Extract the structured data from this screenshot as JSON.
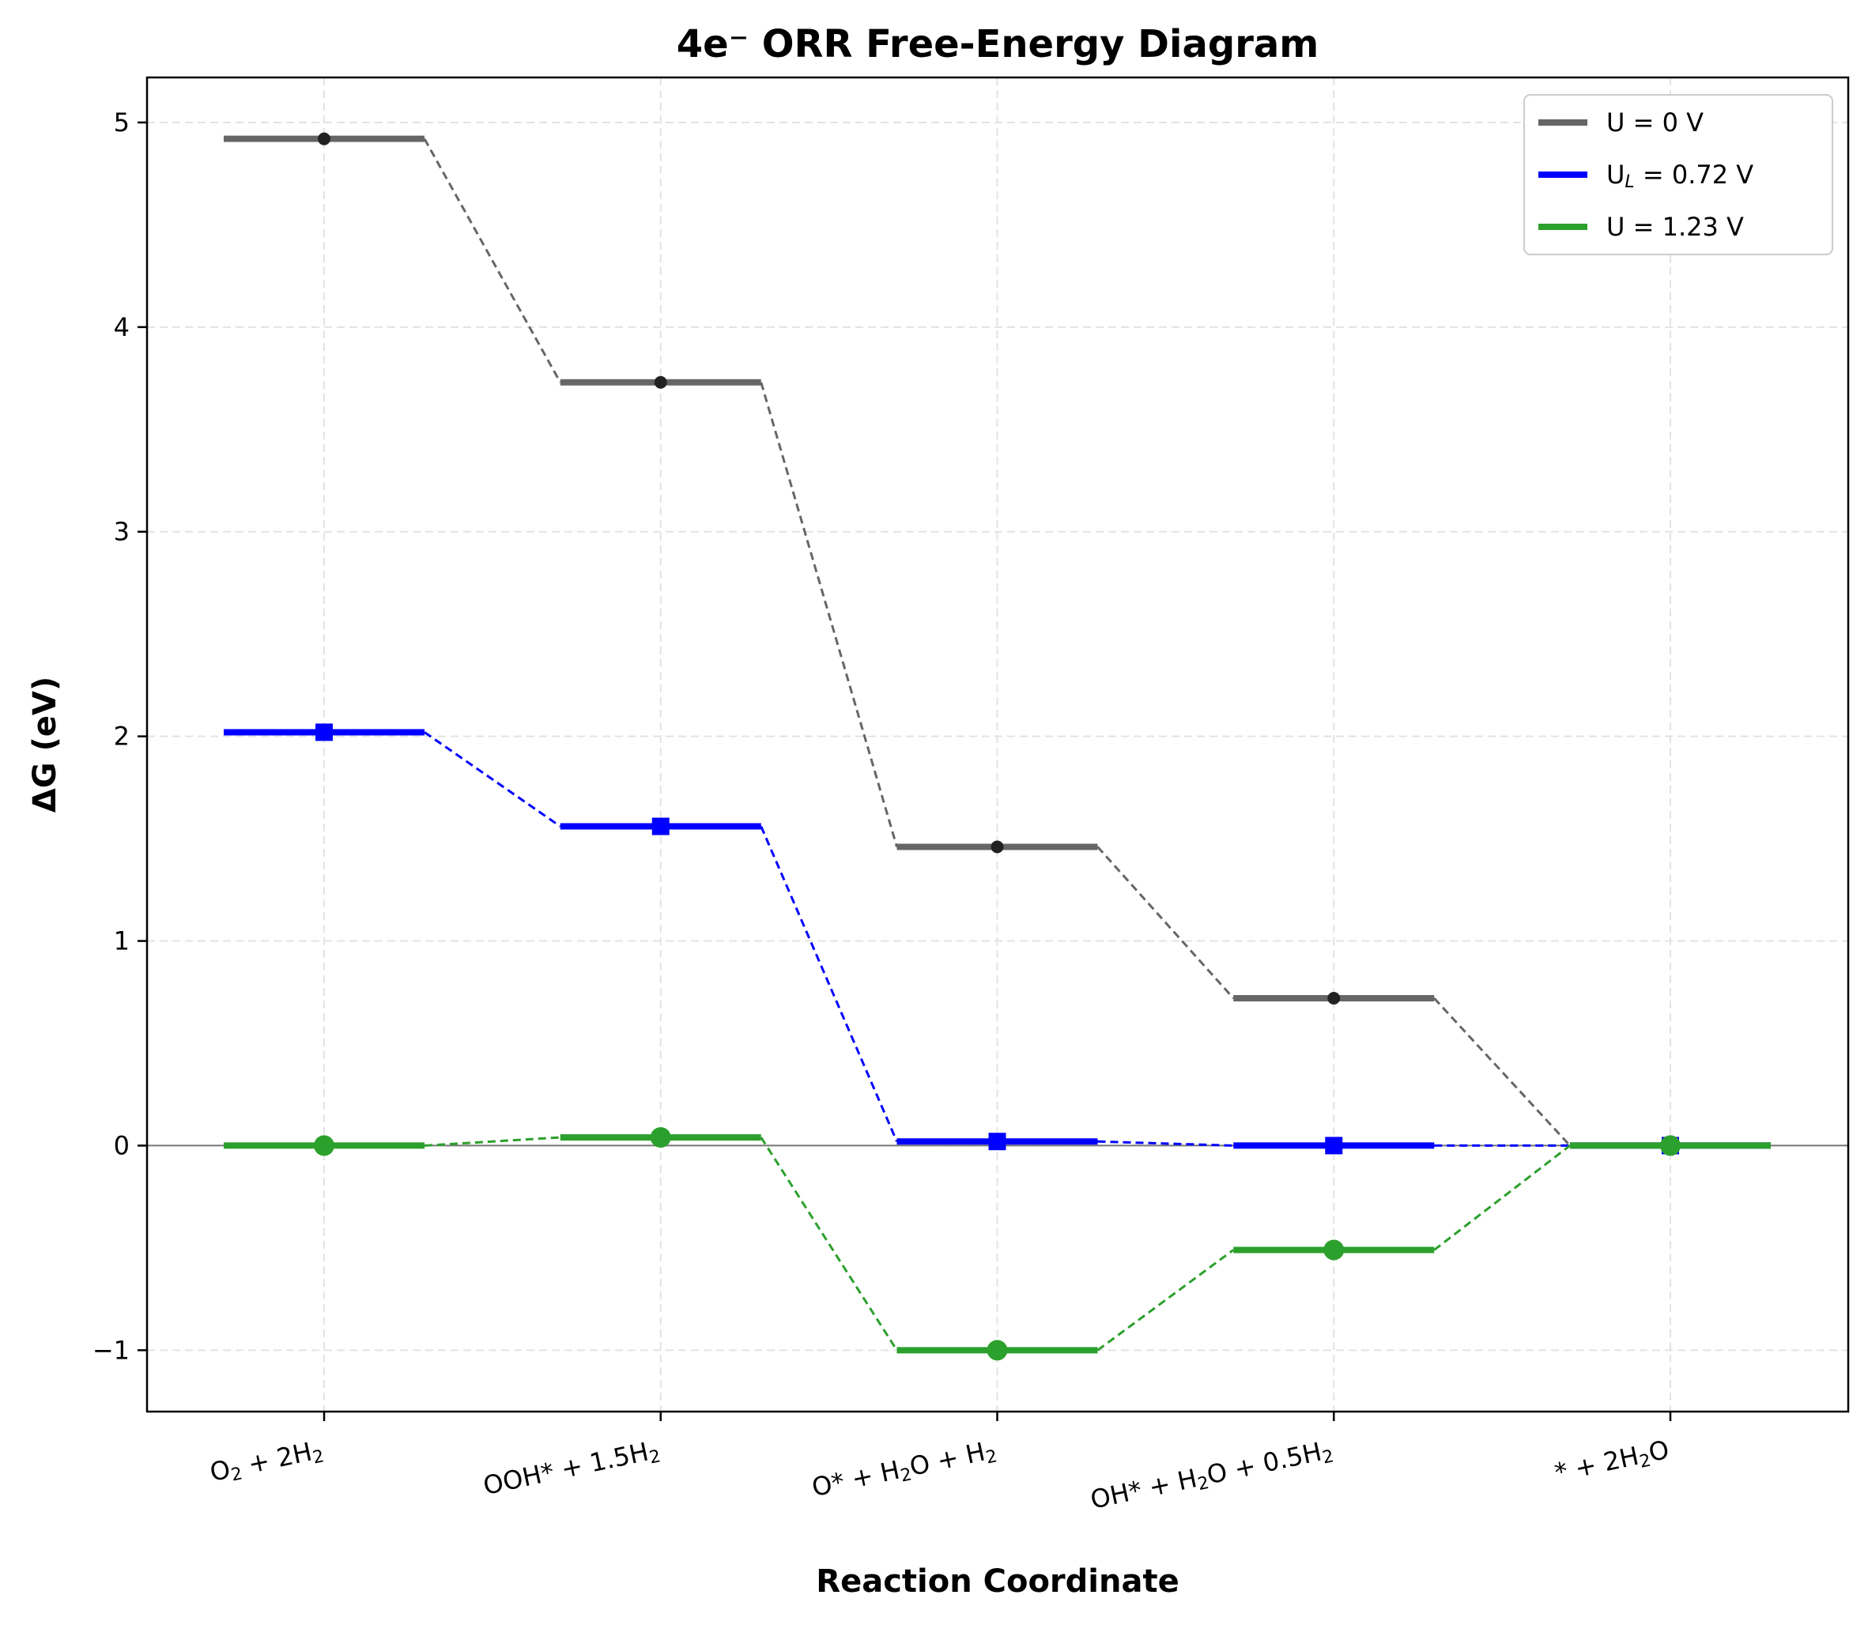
{
  "chart_data": {
    "type": "line",
    "title": "4e⁻ ORR Free-Energy Diagram",
    "xlabel": "Reaction Coordinate",
    "ylabel": "ΔG (eV)",
    "ylim": [
      -1.3,
      5.22
    ],
    "yticks": [
      -1,
      0,
      1,
      2,
      3,
      4,
      5
    ],
    "ytick_labels": [
      "−1",
      "0",
      "1",
      "2",
      "3",
      "4",
      "5"
    ],
    "grid": true,
    "legend_position": "top-right",
    "categories": [
      [
        "O",
        {
          "sub": "2"
        },
        " + 2H",
        {
          "sub": "2"
        }
      ],
      [
        "OOH* + 1.5H",
        {
          "sub": "2"
        }
      ],
      [
        "O* + H",
        {
          "sub": "2"
        },
        "O + H",
        {
          "sub": "2"
        }
      ],
      [
        "OH* + H",
        {
          "sub": "2"
        },
        "O + 0.5H",
        {
          "sub": "2"
        }
      ],
      [
        "* + 2H",
        {
          "sub": "2"
        },
        "O"
      ]
    ],
    "series": [
      {
        "name": [
          "U = 0 V"
        ],
        "color": "#666666",
        "marker": "circle-small",
        "values": [
          4.92,
          3.73,
          1.46,
          0.72,
          0.0
        ]
      },
      {
        "name": [
          "U",
          {
            "sub": "L",
            "italic": true
          },
          " = 0.72 V"
        ],
        "color": "#0000ff",
        "marker": "square",
        "values": [
          2.02,
          1.56,
          0.02,
          0.0,
          0.0
        ]
      },
      {
        "name": [
          "U = 1.23 V"
        ],
        "color": "#2ca02c",
        "marker": "circle",
        "values": [
          0.0,
          0.04,
          -1.0,
          -0.51,
          0.0
        ]
      }
    ]
  }
}
